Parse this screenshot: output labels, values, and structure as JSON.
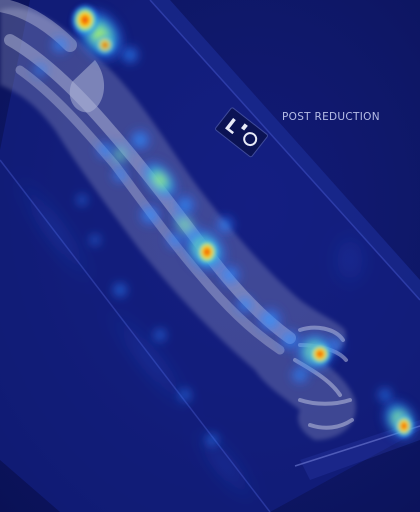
{
  "image": {
    "description_label": "",
    "annotation": "POST REDUCTION",
    "marker_text": "L",
    "colors": {
      "background": "#0e1766",
      "plate": "#1a2f9a",
      "bone": "#c9cfe8",
      "heat_low": "#2f7bff",
      "heat_mid": "#35e0c8",
      "heat_high": "#ffd400",
      "heat_peak": "#e0141e"
    }
  }
}
